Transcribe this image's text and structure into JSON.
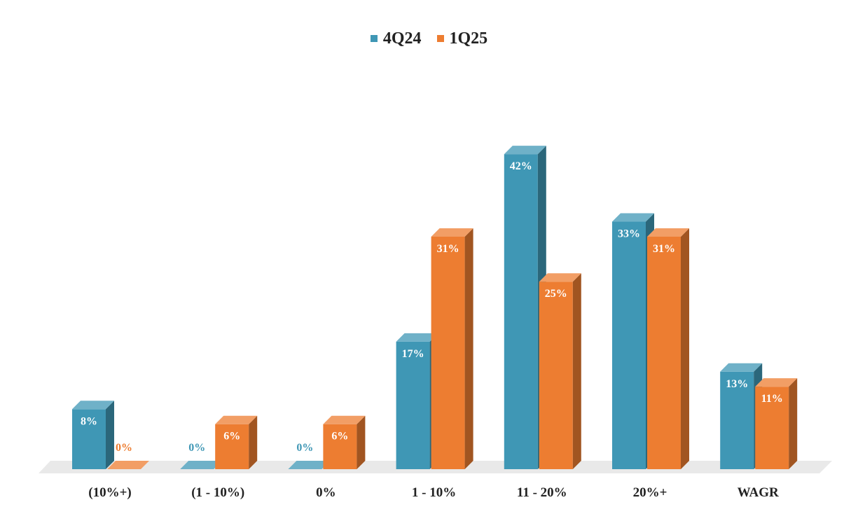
{
  "chart_data": {
    "type": "bar",
    "categories": [
      "(10%+)",
      "(1 - 10%)",
      "0%",
      "1 - 10%",
      "11 - 20%",
      "20%+",
      "WAGR"
    ],
    "series": [
      {
        "name": "4Q24",
        "values": [
          8,
          0,
          0,
          17,
          42,
          33,
          13
        ],
        "labels": [
          "8%",
          "0%",
          "0%",
          "17%",
          "42%",
          "33%",
          "13%"
        ],
        "color": "#3f97b5"
      },
      {
        "name": "1Q25",
        "values": [
          0,
          6,
          6,
          31,
          25,
          31,
          11
        ],
        "labels": [
          "0%",
          "6%",
          "6%",
          "31%",
          "25%",
          "31%",
          "11%"
        ],
        "color": "#ed7d31"
      }
    ],
    "ylim": [
      0,
      45
    ],
    "grid": false,
    "legend_position": "top-center",
    "style": "3d-columns"
  }
}
